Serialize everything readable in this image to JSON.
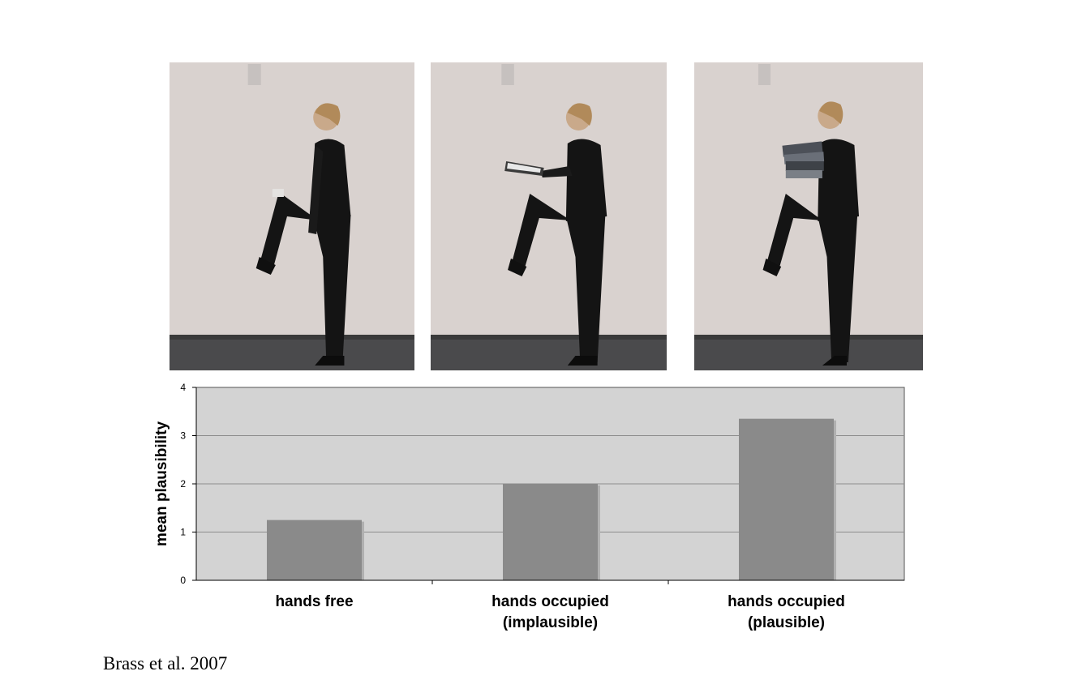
{
  "images": [
    {
      "condition": "hands free"
    },
    {
      "condition": "hands occupied (implausible)"
    },
    {
      "condition": "hands occupied (plausible)"
    }
  ],
  "chart_data": {
    "type": "bar",
    "categories": [
      [
        "hands free"
      ],
      [
        "hands occupied",
        "(implausible)"
      ],
      [
        "hands occupied",
        "(plausible)"
      ]
    ],
    "values": [
      1.25,
      2.0,
      3.35
    ],
    "ylabel": "mean plausibility",
    "xlabel": "",
    "ylim": [
      0,
      4
    ],
    "yticks": [
      0,
      1,
      2,
      3,
      4
    ],
    "grid": true,
    "plot_bg": "#d3d3d3",
    "bar_color": "#8a8a8a"
  },
  "citation": "Brass et al. 2007"
}
